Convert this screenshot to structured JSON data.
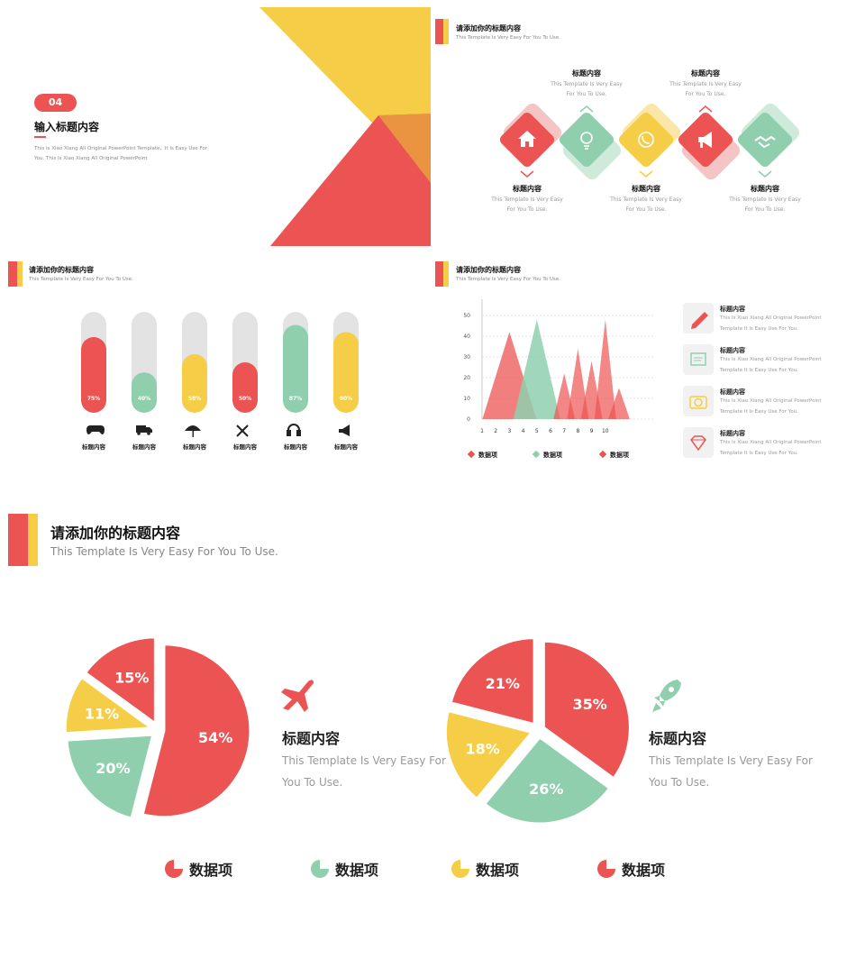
{
  "colors": {
    "red": "#ec5453",
    "yellow": "#f5cd47",
    "green": "#8fcfae",
    "gray": "#e3e3e3"
  },
  "slide1": {
    "badge": "04",
    "title": "输入标题内容",
    "desc": "This Is Xiao Xiang All Original PowerPoint Template，It Is Easy Use For You. This Is Xiao Xiang All Original PowerPoint"
  },
  "slide2": {
    "title": "请添加你的标题内容",
    "subtitle": "This Template Is Very Easy For You To Use.",
    "top_items": [
      {
        "title": "标题内容",
        "desc": "This Template Is Very Easy For You To Use."
      },
      {
        "title": "标题内容",
        "desc": "This Template Is Very Easy For You To Use."
      }
    ],
    "bottom_items": [
      {
        "title": "标题内容",
        "desc": "This Template Is Very Easy For You To Use."
      },
      {
        "title": "标题内容",
        "desc": "This Template Is Very Easy For You To Use."
      },
      {
        "title": "标题内容",
        "desc": "This Template Is Very Easy For You To Use."
      }
    ],
    "icons": [
      "home-icon",
      "lightbulb-icon",
      "phone-icon",
      "megaphone-icon",
      "handshake-icon"
    ]
  },
  "slide3": {
    "title": "请添加你的标题内容",
    "subtitle": "This Template Is Very Easy For You To Use.",
    "bars": [
      {
        "value": 75,
        "label": "75%",
        "name": "标题内容",
        "icon": "gamepad-icon"
      },
      {
        "value": 40,
        "label": "40%",
        "name": "标题内容",
        "icon": "truck-icon"
      },
      {
        "value": 58,
        "label": "58%",
        "name": "标题内容",
        "icon": "umbrella-icon"
      },
      {
        "value": 50,
        "label": "50%",
        "name": "标题内容",
        "icon": "tools-icon"
      },
      {
        "value": 87,
        "label": "87%",
        "name": "标题内容",
        "icon": "headphones-icon"
      },
      {
        "value": 80,
        "label": "80%",
        "name": "标题内容",
        "icon": "megaphone-icon"
      }
    ]
  },
  "slide4": {
    "title": "请添加你的标题内容",
    "subtitle": "This Template Is Very Easy For You To Use.",
    "side_items": [
      {
        "title": "标题内容",
        "desc1": "This Is Xiao Xiang All Original PowerPoint",
        "desc2": "Template It Is Easy Use For You.",
        "icon": "pencil-icon"
      },
      {
        "title": "标题内容",
        "desc1": "This Is Xiao Xiang All Original PowerPoint",
        "desc2": "Template It Is Easy Use For You.",
        "icon": "picture-icon"
      },
      {
        "title": "标题内容",
        "desc1": "This Is Xiao Xiang All Original PowerPoint",
        "desc2": "Template It Is Easy Use For You.",
        "icon": "camera-icon"
      },
      {
        "title": "标题内容",
        "desc1": "This Is Xiao Xiang All Original PowerPoint",
        "desc2": "Template It Is Easy Use For You.",
        "icon": "diamond-icon"
      }
    ],
    "legend": [
      "数据项",
      "数据项",
      "数据项"
    ]
  },
  "slide5": {
    "title": "请添加你的标题内容",
    "subtitle": "This Template Is Very Easy For You To Use.",
    "left_block": {
      "title": "标题内容",
      "desc1": "This Template Is Very Easy For",
      "desc2": "You To Use.",
      "icon": "airplane-icon"
    },
    "right_block": {
      "title": "标题内容",
      "desc1": "This Template Is Very Easy For",
      "desc2": "You To Use.",
      "icon": "rocket-icon"
    },
    "legend": [
      "数据项",
      "数据项",
      "数据项",
      "数据项"
    ]
  },
  "chart_data": [
    {
      "type": "bar",
      "categories": [
        "标题内容",
        "标题内容",
        "标题内容",
        "标题内容",
        "标题内容",
        "标题内容"
      ],
      "values": [
        75,
        40,
        58,
        50,
        87,
        80
      ],
      "data_labels": [
        "75%",
        "40%",
        "58%",
        "50%",
        "87%",
        "80%"
      ],
      "ylim": [
        0,
        100
      ]
    },
    {
      "type": "area",
      "x": [
        1,
        2,
        3,
        4,
        5,
        6,
        7,
        8,
        9,
        10
      ],
      "yticks": [
        0,
        10,
        20,
        30,
        40,
        50
      ],
      "ylim": [
        0,
        50
      ],
      "grid": true,
      "legend": "bottom",
      "series": [
        {
          "name": "数据项",
          "color": "#ec5453",
          "peaks": [
            [
              3,
              42
            ]
          ]
        },
        {
          "name": "数据项",
          "color": "#8fcfae",
          "peaks": [
            [
              5,
              48
            ]
          ]
        },
        {
          "name": "数据项",
          "color": "#ec5453",
          "peaks": [
            [
              7,
              22
            ],
            [
              8,
              34
            ],
            [
              9,
              28
            ],
            [
              10,
              48
            ],
            [
              11,
              15
            ]
          ]
        }
      ]
    },
    {
      "type": "pie",
      "labels": [
        "54%",
        "20%",
        "11%",
        "15%"
      ],
      "values": [
        54,
        20,
        11,
        15
      ],
      "colors": [
        "#ec5453",
        "#8fcfae",
        "#f5cd47",
        "#ec5453"
      ]
    },
    {
      "type": "pie",
      "labels": [
        "35%",
        "26%",
        "18%",
        "21%"
      ],
      "values": [
        35,
        26,
        18,
        21
      ],
      "colors": [
        "#ec5453",
        "#8fcfae",
        "#f5cd47",
        "#ec5453"
      ]
    }
  ]
}
